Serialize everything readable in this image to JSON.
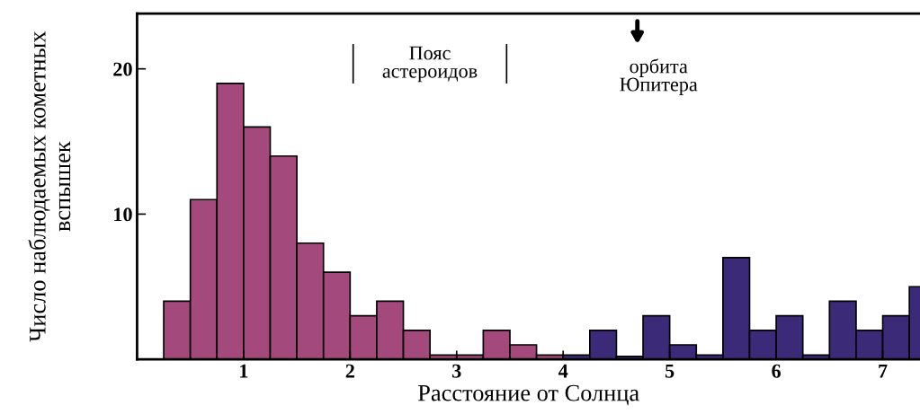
{
  "chart_data": {
    "type": "histogram",
    "xlabel": "Расстояние от Солнца",
    "ylabel": "Число наблюдаемых кометных\nвспышек",
    "bins": [
      0.25,
      0.5,
      0.75,
      1.0,
      1.25,
      1.5,
      1.75,
      2.0,
      2.25,
      2.5,
      2.75,
      3.0,
      3.25,
      3.5,
      3.75,
      4.0,
      4.25,
      4.5,
      4.75,
      5.0,
      5.25,
      5.5,
      5.75,
      6.0,
      6.25,
      6.5,
      6.75,
      7.0,
      7.25,
      7.5
    ],
    "values": [
      4,
      11,
      19,
      16,
      14,
      8,
      6,
      3,
      4,
      2,
      0.3,
      0.3,
      2,
      1,
      0.3,
      0.3,
      2,
      0.2,
      3,
      1,
      0.3,
      7,
      2,
      3,
      0.3,
      4,
      2,
      3,
      5
    ],
    "colors": [
      "#a4497b",
      "#a4497b",
      "#a4497b",
      "#a4497b",
      "#a4497b",
      "#a4497b",
      "#a4497b",
      "#a4497b",
      "#a4497b",
      "#a4497b",
      "#a4497b",
      "#a4497b",
      "#a4497b",
      "#a4497b",
      "#a4497b",
      "#3b2a78",
      "#3b2a78",
      "#3b2a78",
      "#3b2a78",
      "#3b2a78",
      "#3b2a78",
      "#3b2a78",
      "#3b2a78",
      "#3b2a78",
      "#3b2a78",
      "#3b2a78",
      "#3b2a78",
      "#3b2a78",
      "#3b2a78"
    ],
    "xlim": [
      0,
      7.35
    ],
    "ylim": [
      0,
      23.8
    ],
    "xticks": [
      1,
      2,
      3,
      4,
      5,
      6,
      7
    ],
    "yticks": [
      10,
      20
    ],
    "annotations": [
      "Пояс\nастероидов",
      "орбита\nЮпитера"
    ],
    "grid": false
  }
}
